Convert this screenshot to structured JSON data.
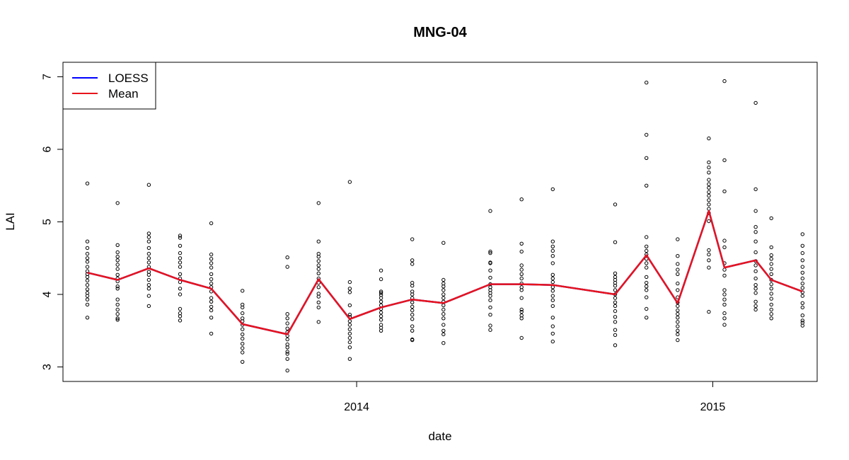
{
  "chart_data": {
    "type": "scatter",
    "title": "MNG-04",
    "xlabel": "date",
    "ylabel": "LAI",
    "x_axis_type": "date",
    "xlim": [
      "2013-03-06",
      "2015-04-18"
    ],
    "ylim": [
      2.8,
      7.2
    ],
    "x_ticks": [
      {
        "value": "2014-01-01",
        "label": "2014"
      },
      {
        "value": "2015-01-01",
        "label": "2015"
      }
    ],
    "y_ticks": [
      3,
      4,
      5,
      6,
      7
    ],
    "grid": false,
    "legend": {
      "placement": "top-left",
      "entries": [
        {
          "name": "LOESS",
          "color": "#0000ff"
        },
        {
          "name": "Mean",
          "color": "#e8141c"
        }
      ]
    },
    "colors": {
      "mean": "#e8141c",
      "loess": "#0000ff",
      "points": "#000000"
    },
    "groups": [
      {
        "date": "2013-03-31",
        "values": [
          5.53,
          4.73,
          4.64,
          4.56,
          4.5,
          4.45,
          4.38,
          4.32,
          4.28,
          4.24,
          4.19,
          4.13,
          4.07,
          4.02,
          3.98,
          3.93,
          3.86,
          3.68
        ]
      },
      {
        "date": "2013-05-01",
        "values": [
          5.26,
          4.68,
          4.58,
          4.52,
          4.47,
          4.41,
          4.35,
          4.27,
          4.22,
          4.18,
          4.11,
          4.08,
          3.93,
          3.86,
          3.79,
          3.73,
          3.67,
          3.65
        ]
      },
      {
        "date": "2013-06-02",
        "values": [
          5.51,
          4.84,
          4.79,
          4.73,
          4.64,
          4.56,
          4.5,
          4.44,
          4.38,
          4.31,
          4.27,
          4.2,
          4.13,
          4.08,
          3.98,
          3.84
        ]
      },
      {
        "date": "2013-07-04",
        "values": [
          4.81,
          4.78,
          4.67,
          4.57,
          4.5,
          4.44,
          4.38,
          4.28,
          4.22,
          4.17,
          4.08,
          4.0,
          3.8,
          3.74,
          3.7,
          3.64
        ]
      },
      {
        "date": "2013-08-05",
        "values": [
          4.98,
          4.55,
          4.49,
          4.43,
          4.37,
          4.28,
          4.21,
          4.15,
          4.1,
          4.04,
          3.95,
          3.9,
          3.83,
          3.78,
          3.68,
          3.46
        ]
      },
      {
        "date": "2013-09-06",
        "values": [
          4.05,
          3.86,
          3.82,
          3.74,
          3.67,
          3.63,
          3.58,
          3.52,
          3.45,
          3.39,
          3.32,
          3.26,
          3.2,
          3.07
        ]
      },
      {
        "date": "2013-10-22",
        "values": [
          4.51,
          4.38,
          3.73,
          3.67,
          3.6,
          3.53,
          3.48,
          3.43,
          3.38,
          3.31,
          3.27,
          3.21,
          3.18,
          3.11,
          2.95
        ]
      },
      {
        "date": "2013-11-23",
        "values": [
          5.26,
          4.73,
          4.56,
          4.52,
          4.46,
          4.4,
          4.35,
          4.29,
          4.22,
          4.16,
          4.1,
          4.01,
          3.97,
          3.89,
          3.82,
          3.62
        ]
      },
      {
        "date": "2013-12-25",
        "values": [
          5.55,
          4.17,
          4.08,
          4.03,
          3.85,
          3.72,
          3.69,
          3.63,
          3.58,
          3.52,
          3.46,
          3.4,
          3.34,
          3.27,
          3.11
        ]
      },
      {
        "date": "2014-01-26",
        "values": [
          4.33,
          4.21,
          4.04,
          4.02,
          3.99,
          3.95,
          3.9,
          3.85,
          3.8,
          3.75,
          3.7,
          3.65,
          3.58,
          3.54,
          3.5
        ]
      },
      {
        "date": "2014-02-27",
        "values": [
          4.76,
          4.47,
          4.42,
          4.16,
          4.12,
          4.04,
          4.0,
          3.95,
          3.89,
          3.83,
          3.78,
          3.72,
          3.66,
          3.56,
          3.5,
          3.38,
          3.37
        ]
      },
      {
        "date": "2014-03-31",
        "values": [
          4.71,
          4.2,
          4.15,
          4.11,
          4.06,
          4.0,
          3.95,
          3.9,
          3.85,
          3.79,
          3.73,
          3.67,
          3.58,
          3.5,
          3.45,
          3.33
        ]
      },
      {
        "date": "2014-05-18",
        "values": [
          5.15,
          4.59,
          4.57,
          4.44,
          4.43,
          4.33,
          4.23,
          4.14,
          4.1,
          4.06,
          4.02,
          3.98,
          3.92,
          3.82,
          3.72,
          3.57,
          3.51
        ]
      },
      {
        "date": "2014-06-19",
        "values": [
          5.31,
          4.7,
          4.59,
          4.4,
          4.34,
          4.28,
          4.22,
          4.15,
          4.1,
          4.06,
          3.95,
          3.79,
          3.76,
          3.71,
          3.67,
          3.4
        ]
      },
      {
        "date": "2014-07-21",
        "values": [
          5.45,
          4.73,
          4.66,
          4.6,
          4.53,
          4.43,
          4.27,
          4.22,
          4.17,
          4.1,
          4.05,
          3.98,
          3.92,
          3.84,
          3.68,
          3.56,
          3.46,
          3.35
        ]
      },
      {
        "date": "2014-09-23",
        "values": [
          5.24,
          4.72,
          4.29,
          4.24,
          4.2,
          4.16,
          4.12,
          4.06,
          4.0,
          3.95,
          3.89,
          3.84,
          3.77,
          3.69,
          3.62,
          3.51,
          3.44,
          3.3
        ]
      },
      {
        "date": "2014-10-25",
        "values": [
          6.92,
          6.2,
          5.88,
          5.5,
          4.79,
          4.66,
          4.6,
          4.55,
          4.49,
          4.43,
          4.37,
          4.24,
          4.16,
          4.11,
          4.06,
          3.96,
          3.8,
          3.68
        ]
      },
      {
        "date": "2014-11-26",
        "values": [
          4.76,
          4.53,
          4.42,
          4.34,
          4.28,
          4.15,
          4.06,
          3.96,
          3.89,
          3.84,
          3.78,
          3.73,
          3.68,
          3.62,
          3.56,
          3.5,
          3.45,
          3.37
        ]
      },
      {
        "date": "2014-12-28",
        "values": [
          6.15,
          5.82,
          5.75,
          5.68,
          5.58,
          5.52,
          5.47,
          5.41,
          5.36,
          5.3,
          5.24,
          5.18,
          5.12,
          5.01,
          4.61,
          4.55,
          4.47,
          4.37,
          3.76
        ]
      },
      {
        "date": "2015-01-13",
        "values": [
          6.94,
          5.85,
          5.42,
          4.74,
          4.65,
          4.43,
          4.34,
          4.26,
          4.06,
          4.0,
          3.93,
          3.86,
          3.74,
          3.67,
          3.58
        ]
      },
      {
        "date": "2015-02-14",
        "values": [
          6.64,
          5.45,
          5.15,
          4.93,
          4.86,
          4.73,
          4.58,
          4.46,
          4.4,
          4.32,
          4.22,
          4.13,
          4.08,
          4.02,
          3.9,
          3.84,
          3.79
        ]
      },
      {
        "date": "2015-03-02",
        "values": [
          5.05,
          4.65,
          4.54,
          4.49,
          4.42,
          4.35,
          4.28,
          4.2,
          4.14,
          4.08,
          4.01,
          3.94,
          3.86,
          3.79,
          3.73,
          3.67
        ]
      },
      {
        "date": "2015-04-03",
        "values": [
          4.83,
          4.67,
          4.57,
          4.47,
          4.38,
          4.3,
          4.22,
          4.15,
          4.09,
          4.03,
          3.98,
          3.88,
          3.82,
          3.71,
          3.64,
          3.61,
          3.57
        ]
      }
    ],
    "series": [
      {
        "name": "LOESS",
        "color": "#0000ff",
        "x": [
          "2013-03-31",
          "2013-05-01",
          "2013-06-02",
          "2013-07-04",
          "2013-08-05",
          "2013-09-06",
          "2013-10-22",
          "2013-11-23",
          "2013-12-25",
          "2014-01-26",
          "2014-02-27",
          "2014-03-31",
          "2014-05-18",
          "2014-06-19",
          "2014-07-21",
          "2014-09-23",
          "2014-10-25",
          "2014-11-26",
          "2014-12-28",
          "2015-01-13",
          "2015-02-14",
          "2015-03-02",
          "2015-04-03"
        ],
        "y": [
          4.3,
          4.2,
          4.36,
          4.2,
          4.08,
          3.59,
          3.45,
          4.21,
          3.66,
          3.82,
          3.93,
          3.88,
          4.14,
          4.14,
          4.13,
          4.0,
          4.54,
          3.88,
          5.15,
          4.37,
          4.47,
          4.2,
          4.04
        ]
      },
      {
        "name": "Mean",
        "color": "#e8141c",
        "x": [
          "2013-03-31",
          "2013-05-01",
          "2013-06-02",
          "2013-07-04",
          "2013-08-05",
          "2013-09-06",
          "2013-10-22",
          "2013-11-23",
          "2013-12-25",
          "2014-01-26",
          "2014-02-27",
          "2014-03-31",
          "2014-05-18",
          "2014-06-19",
          "2014-07-21",
          "2014-09-23",
          "2014-10-25",
          "2014-11-26",
          "2014-12-28",
          "2015-01-13",
          "2015-02-14",
          "2015-03-02",
          "2015-04-03"
        ],
        "y": [
          4.3,
          4.2,
          4.36,
          4.2,
          4.08,
          3.59,
          3.45,
          4.21,
          3.66,
          3.82,
          3.93,
          3.88,
          4.14,
          4.14,
          4.13,
          4.0,
          4.54,
          3.88,
          5.15,
          4.37,
          4.47,
          4.2,
          4.04
        ]
      }
    ]
  }
}
